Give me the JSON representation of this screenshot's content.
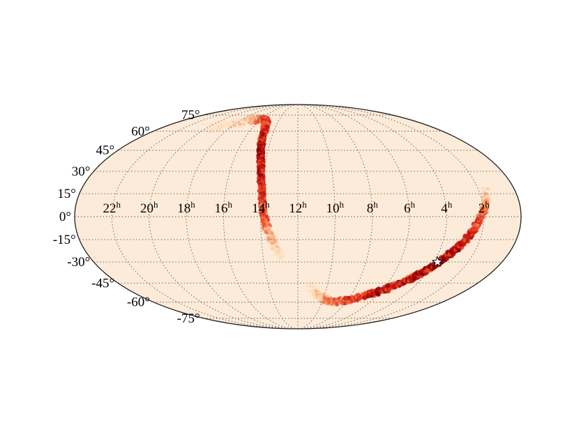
{
  "chart_data": {
    "type": "heatmap",
    "projection": "mollweide",
    "title": "",
    "xlabel": "",
    "ylabel": "",
    "ra_range_hours": [
      0,
      24
    ],
    "dec_range_deg": [
      -90,
      90
    ],
    "grid": true,
    "grid_style": "dotted",
    "background_color": "#fdebd9",
    "colormap": [
      "#fdd9b4",
      "#fca06a",
      "#f4502a",
      "#c81010",
      "#7a0000"
    ],
    "ra_tick_labels": [
      {
        "ra": 22,
        "hour": "22",
        "unit": "h"
      },
      {
        "ra": 20,
        "hour": "20",
        "unit": "h"
      },
      {
        "ra": 18,
        "hour": "18",
        "unit": "h"
      },
      {
        "ra": 16,
        "hour": "16",
        "unit": "h"
      },
      {
        "ra": 14,
        "hour": "14",
        "unit": "h"
      },
      {
        "ra": 12,
        "hour": "12",
        "unit": "h"
      },
      {
        "ra": 10,
        "hour": "10",
        "unit": "h"
      },
      {
        "ra": 8,
        "hour": "8",
        "unit": "h"
      },
      {
        "ra": 6,
        "hour": "6",
        "unit": "h"
      },
      {
        "ra": 4,
        "hour": "4",
        "unit": "h"
      },
      {
        "ra": 2,
        "hour": "2",
        "unit": "h"
      }
    ],
    "dec_tick_labels": [
      {
        "dec": 75,
        "label": "75°"
      },
      {
        "dec": 60,
        "label": "60°"
      },
      {
        "dec": 45,
        "label": "45°"
      },
      {
        "dec": 30,
        "label": "30°"
      },
      {
        "dec": 15,
        "label": "15°"
      },
      {
        "dec": 0,
        "label": "0°"
      },
      {
        "dec": -15,
        "label": "-15°"
      },
      {
        "dec": -30,
        "label": "-30°"
      },
      {
        "dec": -45,
        "label": "-45°"
      },
      {
        "dec": -60,
        "label": "-60°"
      },
      {
        "dec": -75,
        "label": "-75°"
      }
    ],
    "probability_arcs": [
      {
        "name": "",
        "points": [
          {
            "ra": 19.8,
            "dec": 62,
            "w": 0.12
          },
          {
            "ra": 18.8,
            "dec": 65,
            "w": 0.2
          },
          {
            "ra": 17.6,
            "dec": 68,
            "w": 0.3
          },
          {
            "ra": 16.6,
            "dec": 70,
            "w": 0.45
          },
          {
            "ra": 15.8,
            "dec": 71,
            "w": 0.65
          },
          {
            "ra": 15.1,
            "dec": 68,
            "w": 0.75
          },
          {
            "ra": 14.8,
            "dec": 60,
            "w": 0.8
          },
          {
            "ra": 14.6,
            "dec": 50,
            "w": 0.9
          },
          {
            "ra": 14.4,
            "dec": 42,
            "w": 0.95
          },
          {
            "ra": 14.2,
            "dec": 33,
            "w": 0.9
          },
          {
            "ra": 14.05,
            "dec": 22,
            "w": 0.85
          },
          {
            "ra": 13.95,
            "dec": 12,
            "w": 0.8
          },
          {
            "ra": 13.85,
            "dec": 3,
            "w": 0.75
          },
          {
            "ra": 13.7,
            "dec": -6,
            "w": 0.6
          },
          {
            "ra": 13.45,
            "dec": -14,
            "w": 0.4
          },
          {
            "ra": 13.2,
            "dec": -21,
            "w": 0.25
          },
          {
            "ra": 12.9,
            "dec": -27,
            "w": 0.12
          }
        ]
      },
      {
        "name": "",
        "points": [
          {
            "ra": 11.2,
            "dec": -48,
            "w": 0.12
          },
          {
            "ra": 10.6,
            "dec": -54,
            "w": 0.3
          },
          {
            "ra": 9.9,
            "dec": -58,
            "w": 0.5
          },
          {
            "ra": 9.0,
            "dec": -60,
            "w": 0.6
          },
          {
            "ra": 8.0,
            "dec": -58,
            "w": 0.7
          },
          {
            "ra": 7.0,
            "dec": -55,
            "w": 0.8
          },
          {
            "ra": 6.0,
            "dec": -51,
            "w": 0.85
          },
          {
            "ra": 5.0,
            "dec": -44,
            "w": 0.9
          },
          {
            "ra": 4.2,
            "dec": -37,
            "w": 0.95
          },
          {
            "ra": 3.6,
            "dec": -29,
            "w": 1.0
          },
          {
            "ra": 3.0,
            "dec": -19,
            "w": 0.9
          },
          {
            "ra": 2.5,
            "dec": -9,
            "w": 0.8
          },
          {
            "ra": 2.1,
            "dec": 1,
            "w": 0.65
          },
          {
            "ra": 1.8,
            "dec": 10,
            "w": 0.45
          },
          {
            "ra": 1.6,
            "dec": 17,
            "w": 0.25
          }
        ]
      }
    ],
    "marker": {
      "shape": "star",
      "ra": 3.8,
      "dec": -30,
      "fill": "#ffffff",
      "stroke": "#000000"
    }
  }
}
